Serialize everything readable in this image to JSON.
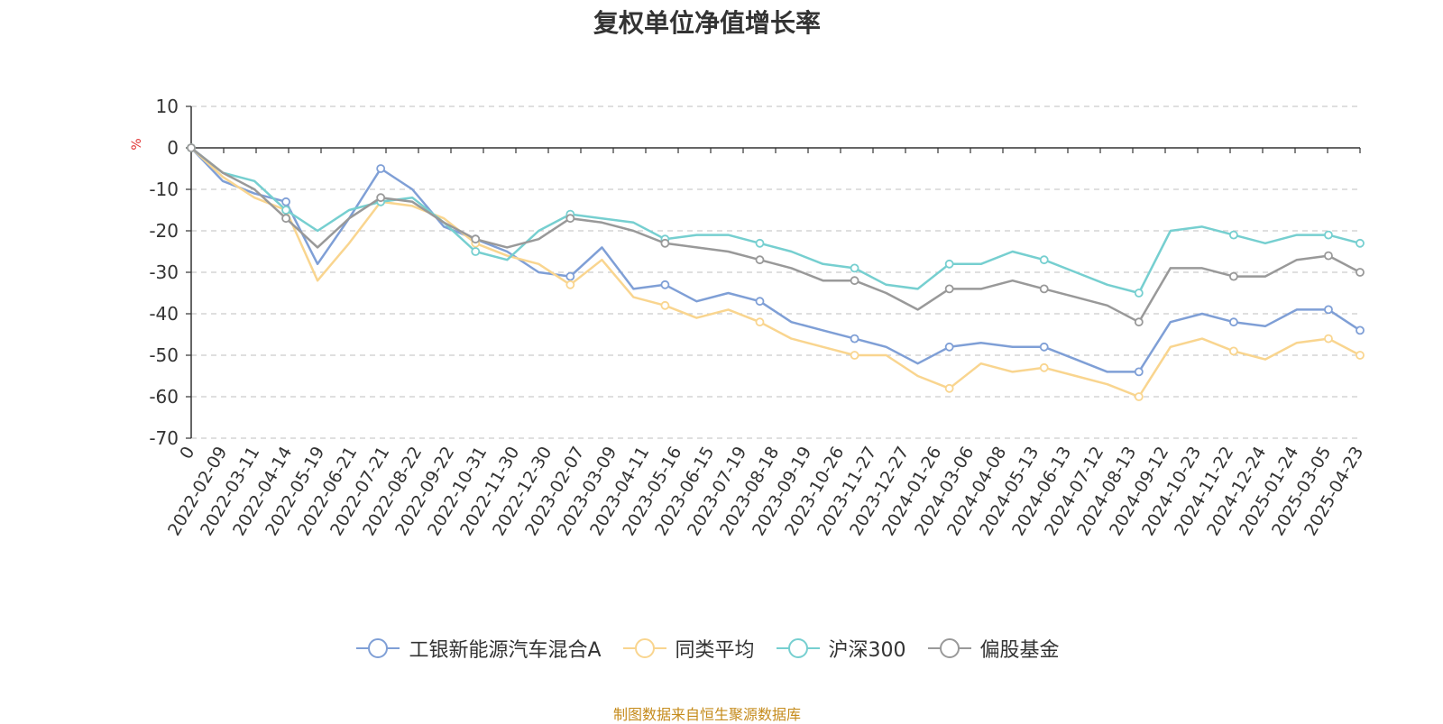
{
  "chart_data": {
    "type": "line",
    "title": "复权单位净值增长率",
    "ylabel": "%",
    "ylim": [
      -70,
      10
    ],
    "yticks": [
      10,
      0,
      -10,
      -20,
      -30,
      -40,
      -50,
      -60,
      -70
    ],
    "grid": true,
    "legend_position": "bottom",
    "x_tick_labels": [
      "0",
      "2022-02-09",
      "2022-03-11",
      "2022-04-14",
      "2022-05-19",
      "2022-06-21",
      "2022-07-21",
      "2022-08-22",
      "2022-09-22",
      "2022-10-31",
      "2022-11-30",
      "2022-12-30",
      "2023-02-07",
      "2023-03-09",
      "2023-04-11",
      "2023-05-16",
      "2023-06-15",
      "2023-07-19",
      "2023-08-18",
      "2023-09-19",
      "2023-10-26",
      "2023-11-27",
      "2023-12-27",
      "2024-01-26",
      "2024-03-06",
      "2024-04-08",
      "2024-05-13",
      "2024-06-13",
      "2024-07-12",
      "2024-08-13",
      "2024-09-12",
      "2024-10-23",
      "2024-11-22",
      "2024-12-24",
      "2025-01-24",
      "2025-03-05",
      "2025-04-23"
    ],
    "series": [
      {
        "name": "工银新能源汽车混合A",
        "color": "#7f9fd6",
        "values": [
          0,
          -8,
          -11,
          -13,
          -28,
          -17,
          -5,
          -10,
          -19,
          -22,
          -25,
          -30,
          -31,
          -24,
          -34,
          -33,
          -37,
          -35,
          -37,
          -42,
          -44,
          -46,
          -48,
          -52,
          -48,
          -47,
          -48,
          -48,
          -51,
          -54,
          -54,
          -42,
          -40,
          -42,
          -43,
          -39,
          -39,
          -44
        ]
      },
      {
        "name": "同类平均",
        "color": "#f9d58f",
        "values": [
          0,
          -7,
          -12,
          -15,
          -32,
          -23,
          -13,
          -14,
          -17,
          -23,
          -26,
          -28,
          -33,
          -27,
          -36,
          -38,
          -41,
          -39,
          -42,
          -46,
          -48,
          -50,
          -50,
          -55,
          -58,
          -52,
          -54,
          -53,
          -55,
          -57,
          -60,
          -48,
          -46,
          -49,
          -51,
          -47,
          -46,
          -50
        ]
      },
      {
        "name": "沪深300",
        "color": "#76cfd0",
        "values": [
          0,
          -6,
          -8,
          -15,
          -20,
          -15,
          -13,
          -12,
          -18,
          -25,
          -27,
          -20,
          -16,
          -17,
          -18,
          -22,
          -21,
          -21,
          -23,
          -25,
          -28,
          -29,
          -33,
          -34,
          -28,
          -28,
          -25,
          -27,
          -30,
          -33,
          -35,
          -20,
          -19,
          -21,
          -23,
          -21,
          -21,
          -23
        ]
      },
      {
        "name": "偏股基金",
        "color": "#999999",
        "values": [
          0,
          -6,
          -10,
          -17,
          -24,
          -17,
          -12,
          -13,
          -18,
          -22,
          -24,
          -22,
          -17,
          -18,
          -20,
          -23,
          -24,
          -25,
          -27,
          -29,
          -32,
          -32,
          -35,
          -39,
          -34,
          -34,
          -32,
          -34,
          -36,
          -38,
          -42,
          -29,
          -29,
          -31,
          -31,
          -27,
          -26,
          -30
        ]
      }
    ]
  },
  "source_note": "制图数据来自恒生聚源数据库"
}
